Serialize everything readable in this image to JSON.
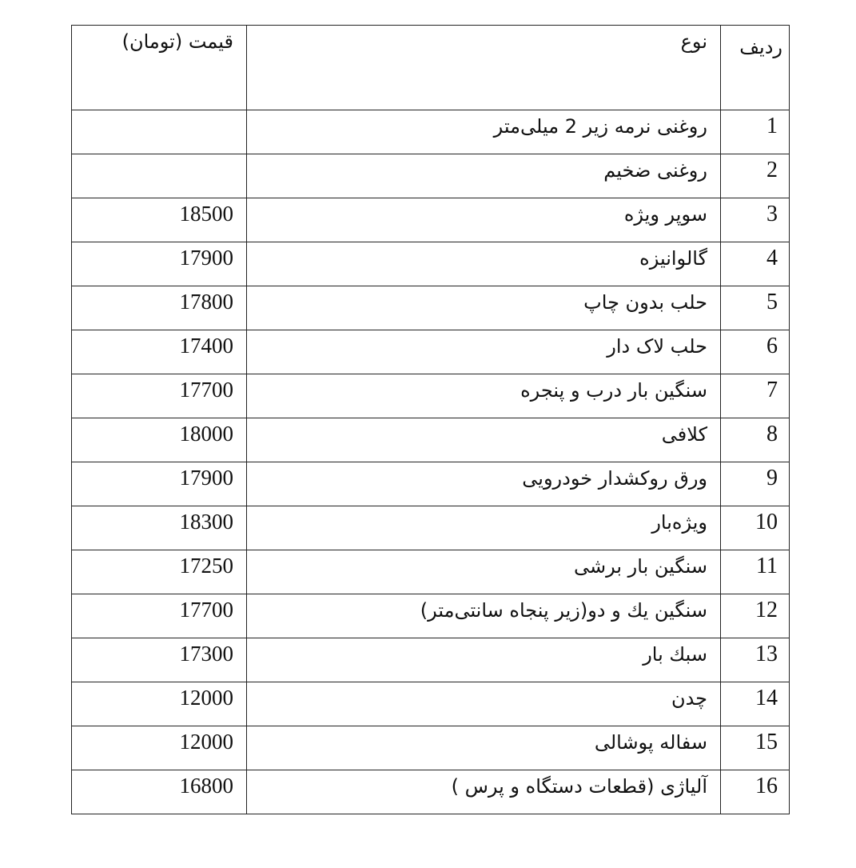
{
  "table": {
    "headers": {
      "row": "ردیف",
      "type": "نوع",
      "price": "قیمت (تومان)"
    },
    "rows": [
      {
        "row": "1",
        "type": "روغنی نرمه زیر 2 میلی‌متر",
        "price": ""
      },
      {
        "row": "2",
        "type": "روغنی ضخیم",
        "price": ""
      },
      {
        "row": "3",
        "type": "سوپر ویژه",
        "price": "18500"
      },
      {
        "row": "4",
        "type": "گالوانیزه",
        "price": "17900"
      },
      {
        "row": "5",
        "type": "حلب بدون چاپ",
        "price": "17800"
      },
      {
        "row": "6",
        "type": "حلب لاک دار",
        "price": "17400"
      },
      {
        "row": "7",
        "type": "سنگین بار درب و پنجره",
        "price": "17700"
      },
      {
        "row": "8",
        "type": "کلافی",
        "price": "18000"
      },
      {
        "row": "9",
        "type": "ورق روکشدار خودرویی",
        "price": "17900"
      },
      {
        "row": "10",
        "type": "ویژه‌بار",
        "price": "18300"
      },
      {
        "row": "11",
        "type": "سنگین بار برشی",
        "price": "17250"
      },
      {
        "row": "12",
        "type": "سنگین يك و دو(زیر پنجاه سانتی‌متر)",
        "price": "17700"
      },
      {
        "row": "13",
        "type": "سبك بار",
        "price": "17300"
      },
      {
        "row": "14",
        "type": "چدن",
        "price": "12000"
      },
      {
        "row": "15",
        "type": "سفاله پوشالی",
        "price": "12000"
      },
      {
        "row": "16",
        "type": "آلیاژی (قطعات دستگاه و پرس )",
        "price": "16800"
      }
    ]
  }
}
